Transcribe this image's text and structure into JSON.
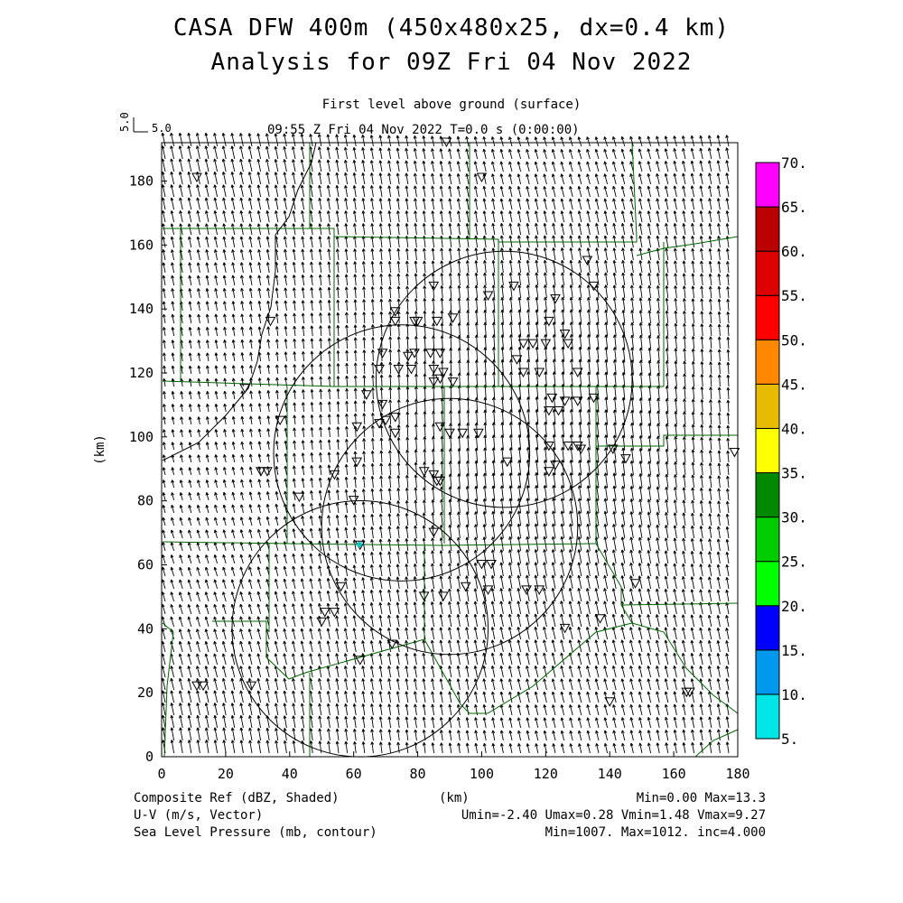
{
  "title": {
    "line1": "CASA DFW 400m (450x480x25, dx=0.4 km)",
    "line2": "Analysis for 09Z Fri 04 Nov 2022"
  },
  "subtitle": {
    "level": "First level above ground (surface)",
    "time": "09:55 Z Fri 04 Nov 2022    T=0.0 s (0:00:00)"
  },
  "vector_scale": {
    "value_y": "5.0",
    "value_x": "5.0"
  },
  "axes": {
    "x_unit": "(km)",
    "y_unit": "(km)",
    "x_ticks": [
      "0",
      "20",
      "40",
      "60",
      "80",
      "100",
      "120",
      "140",
      "160",
      "180"
    ],
    "y_ticks": [
      "0",
      "20",
      "40",
      "60",
      "80",
      "100",
      "120",
      "140",
      "160",
      "180"
    ]
  },
  "colorbar": {
    "labels": [
      "5.",
      "10.",
      "15.",
      "20.",
      "25.",
      "30.",
      "35.",
      "40.",
      "45.",
      "50.",
      "55.",
      "60.",
      "65.",
      "70."
    ],
    "colors": [
      "#00e5e5",
      "#0099ee",
      "#0000ff",
      "#00ff00",
      "#00cc00",
      "#008800",
      "#ffff00",
      "#e6bb00",
      "#ff8800",
      "#ff0000",
      "#dd0000",
      "#bb0000",
      "#ff00ff"
    ]
  },
  "footer": {
    "left1": "Composite Ref (dBZ, Shaded)",
    "left2": "U-V (m/s, Vector)",
    "left3": "Sea Level Pressure (mb, contour)",
    "center1": "(km)",
    "right1": "Min=0.00 Max=13.3",
    "right2": "Umin=-2.40 Umax=0.28 Vmin=1.48 Vmax=9.27",
    "right3": "Min=1007. Max=1012. inc=4.000"
  },
  "chart_data": {
    "type": "map",
    "xlim": [
      0,
      180
    ],
    "ylim": [
      0,
      192
    ],
    "radar_rings": [
      {
        "center": [
          62,
          40
        ]
      },
      {
        "center": [
          90,
          72
        ]
      },
      {
        "center": [
          75,
          95
        ]
      },
      {
        "center": [
          107,
          118
        ]
      }
    ],
    "station_markers": [
      [
        11,
        181
      ],
      [
        100,
        181
      ],
      [
        89,
        192
      ],
      [
        85,
        147
      ],
      [
        110,
        147
      ],
      [
        133,
        155
      ],
      [
        135,
        147
      ],
      [
        123,
        143
      ],
      [
        102,
        144
      ],
      [
        73,
        139
      ],
      [
        73,
        136
      ],
      [
        79,
        136
      ],
      [
        80,
        136
      ],
      [
        86,
        136
      ],
      [
        91,
        137
      ],
      [
        121,
        136
      ],
      [
        126,
        132
      ],
      [
        34,
        136
      ],
      [
        116,
        129
      ],
      [
        113,
        129
      ],
      [
        120,
        129
      ],
      [
        127,
        129
      ],
      [
        111,
        124
      ],
      [
        113,
        120
      ],
      [
        118,
        120
      ],
      [
        130,
        120
      ],
      [
        69,
        126
      ],
      [
        77,
        125
      ],
      [
        79,
        126
      ],
      [
        84,
        126
      ],
      [
        87,
        126
      ],
      [
        68,
        121
      ],
      [
        74,
        121
      ],
      [
        78,
        121
      ],
      [
        85,
        121
      ],
      [
        88,
        120
      ],
      [
        85,
        117
      ],
      [
        87,
        118
      ],
      [
        91,
        117
      ],
      [
        26,
        115
      ],
      [
        64,
        113
      ],
      [
        69,
        110
      ],
      [
        70,
        105
      ],
      [
        73,
        106
      ],
      [
        68,
        104
      ],
      [
        61,
        103
      ],
      [
        122,
        112
      ],
      [
        126,
        111
      ],
      [
        130,
        111
      ],
      [
        135,
        112
      ],
      [
        37,
        105
      ],
      [
        73,
        101
      ],
      [
        124,
        108
      ],
      [
        121,
        108
      ],
      [
        87,
        103
      ],
      [
        90,
        101
      ],
      [
        94,
        101
      ],
      [
        99,
        101
      ],
      [
        121,
        97
      ],
      [
        127,
        97
      ],
      [
        130,
        97
      ],
      [
        123,
        91
      ],
      [
        131,
        96
      ],
      [
        141,
        96
      ],
      [
        145,
        93
      ],
      [
        61,
        92
      ],
      [
        31,
        89
      ],
      [
        33,
        89
      ],
      [
        54,
        88
      ],
      [
        82,
        89
      ],
      [
        85,
        88
      ],
      [
        87,
        86
      ],
      [
        121,
        89
      ],
      [
        108,
        92
      ],
      [
        60,
        80
      ],
      [
        86,
        86
      ],
      [
        85,
        70
      ],
      [
        148,
        54
      ],
      [
        43,
        81
      ],
      [
        62,
        66
      ],
      [
        100,
        60
      ],
      [
        103,
        60
      ],
      [
        56,
        53
      ],
      [
        95,
        53
      ],
      [
        114,
        52
      ],
      [
        118,
        52
      ],
      [
        102,
        52
      ],
      [
        88,
        50
      ],
      [
        51,
        45
      ],
      [
        54,
        45
      ],
      [
        50,
        42
      ],
      [
        72,
        35
      ],
      [
        126,
        40
      ],
      [
        137,
        43
      ],
      [
        62,
        30
      ],
      [
        11,
        22
      ],
      [
        13,
        22
      ],
      [
        28,
        22
      ],
      [
        140,
        17
      ],
      [
        164,
        20
      ],
      [
        165,
        20
      ],
      [
        179,
        95
      ],
      [
        82,
        50
      ]
    ]
  }
}
